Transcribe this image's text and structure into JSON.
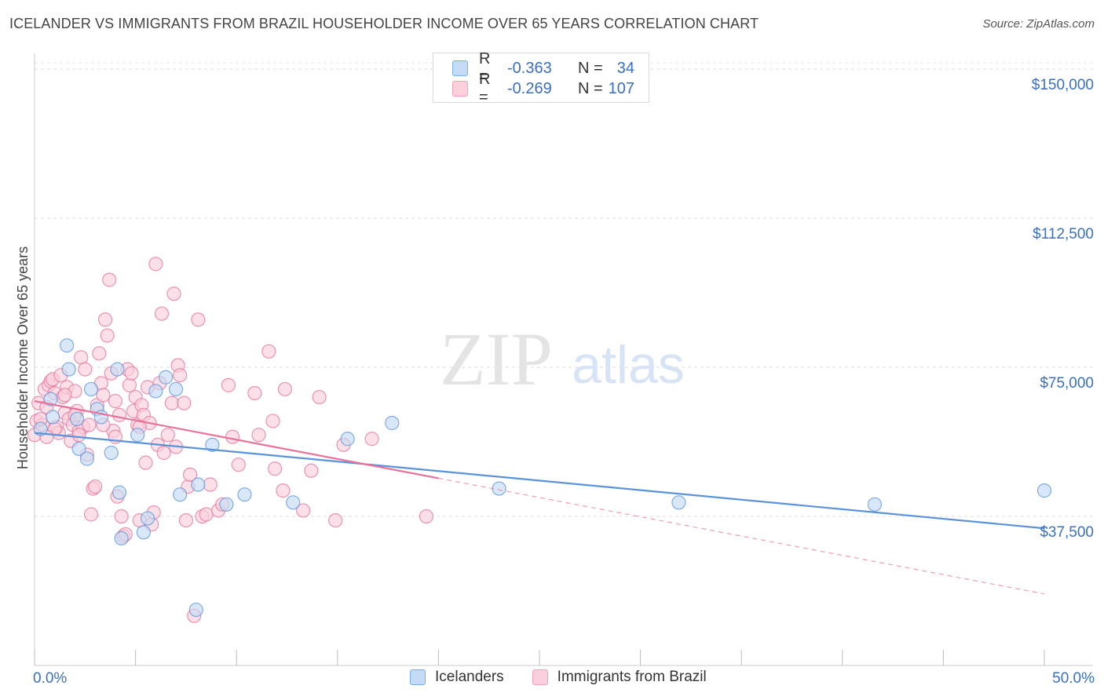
{
  "header": {
    "title": "ICELANDER VS IMMIGRANTS FROM BRAZIL HOUSEHOLDER INCOME OVER 65 YEARS CORRELATION CHART",
    "source": "Source: ZipAtlas.com"
  },
  "legend": {
    "rows": [
      {
        "r_label": "R =",
        "r_value": "-0.363",
        "n_label": "N =",
        "n_value": "34",
        "color": "#7aaee8",
        "fill": "#c5dbf5"
      },
      {
        "r_label": "R =",
        "r_value": "-0.269",
        "n_label": "N =",
        "n_value": "107",
        "color": "#f0a0b8",
        "fill": "#fad0dc"
      }
    ]
  },
  "bottom_legend": {
    "items": [
      {
        "label": "Icelanders",
        "color": "#7aaee8",
        "fill": "#c5dbf5"
      },
      {
        "label": "Immigrants from Brazil",
        "color": "#f0a0b8",
        "fill": "#fad0dc"
      }
    ]
  },
  "watermark": {
    "zip": "ZIP",
    "atlas": "atlas"
  },
  "chart_data": {
    "type": "scatter",
    "title": "ICELANDER VS IMMIGRANTS FROM BRAZIL HOUSEHOLDER INCOME OVER 65 YEARS CORRELATION CHART",
    "xlabel": "",
    "ylabel": "Householder Income Over 65 years",
    "xlim": [
      0,
      50
    ],
    "ylim": [
      0,
      152000
    ],
    "x_tick_labels": [
      "0.0%",
      "50.0%"
    ],
    "y_ticks": [
      37500,
      75000,
      112500,
      150000
    ],
    "y_tick_labels": [
      "$37,500",
      "$75,000",
      "$112,500",
      "$150,000"
    ],
    "grid": true,
    "series": [
      {
        "name": "Icelanders",
        "color": "#5b93d9",
        "fill": "#c5dbf5",
        "trend": {
          "x0": 0,
          "y0": 58500,
          "x1": 50,
          "y1": 34500,
          "dashed_from": null
        },
        "points": [
          [
            0.3,
            59500
          ],
          [
            0.8,
            67000
          ],
          [
            0.9,
            62500
          ],
          [
            1.6,
            80500
          ],
          [
            1.7,
            74500
          ],
          [
            2.1,
            62000
          ],
          [
            2.2,
            54500
          ],
          [
            2.6,
            52000
          ],
          [
            2.8,
            69500
          ],
          [
            3.1,
            64500
          ],
          [
            3.3,
            62500
          ],
          [
            3.8,
            53500
          ],
          [
            4.1,
            74500
          ],
          [
            4.2,
            43500
          ],
          [
            5.1,
            58000
          ],
          [
            5.4,
            33500
          ],
          [
            5.6,
            37000
          ],
          [
            6.0,
            69000
          ],
          [
            6.5,
            72500
          ],
          [
            7.2,
            43000
          ],
          [
            7.0,
            69500
          ],
          [
            8.1,
            45500
          ],
          [
            8.0,
            14000
          ],
          [
            8.8,
            55500
          ],
          [
            9.5,
            40500
          ],
          [
            10.4,
            43000
          ],
          [
            12.8,
            41000
          ],
          [
            15.5,
            57000
          ],
          [
            17.7,
            61000
          ],
          [
            23.0,
            44500
          ],
          [
            31.9,
            41000
          ],
          [
            41.6,
            40500
          ],
          [
            50.0,
            44000
          ],
          [
            4.3,
            32000
          ]
        ]
      },
      {
        "name": "Immigrants from Brazil",
        "color": "#e8729a",
        "fill": "#fad0dc",
        "trend": {
          "x0": 0,
          "y0": 66500,
          "x1": 50,
          "y1": 18000,
          "dashed_from": 20.0
        },
        "points": [
          [
            0.0,
            58000
          ],
          [
            0.1,
            61500
          ],
          [
            0.2,
            66000
          ],
          [
            0.4,
            60500
          ],
          [
            0.5,
            69500
          ],
          [
            0.6,
            65000
          ],
          [
            0.7,
            70500
          ],
          [
            0.8,
            71500
          ],
          [
            0.9,
            72000
          ],
          [
            1.0,
            68500
          ],
          [
            1.1,
            60000
          ],
          [
            1.2,
            58500
          ],
          [
            1.3,
            73000
          ],
          [
            1.4,
            67500
          ],
          [
            1.5,
            63500
          ],
          [
            1.6,
            70000
          ],
          [
            1.7,
            62000
          ],
          [
            1.8,
            56500
          ],
          [
            1.9,
            60500
          ],
          [
            2.0,
            69000
          ],
          [
            2.1,
            64000
          ],
          [
            2.2,
            59000
          ],
          [
            2.3,
            77500
          ],
          [
            2.4,
            60000
          ],
          [
            2.5,
            74500
          ],
          [
            2.6,
            53000
          ],
          [
            2.7,
            60500
          ],
          [
            2.8,
            38000
          ],
          [
            2.9,
            44500
          ],
          [
            3.0,
            45000
          ],
          [
            3.1,
            65500
          ],
          [
            3.2,
            78500
          ],
          [
            3.3,
            71000
          ],
          [
            3.4,
            68000
          ],
          [
            3.5,
            87000
          ],
          [
            3.6,
            83000
          ],
          [
            3.7,
            97000
          ],
          [
            3.8,
            73500
          ],
          [
            3.9,
            59000
          ],
          [
            4.0,
            57500
          ],
          [
            4.1,
            42500
          ],
          [
            4.2,
            63000
          ],
          [
            4.3,
            37500
          ],
          [
            4.4,
            32500
          ],
          [
            4.5,
            33000
          ],
          [
            4.6,
            74500
          ],
          [
            4.7,
            70500
          ],
          [
            4.8,
            73500
          ],
          [
            4.9,
            64000
          ],
          [
            5.0,
            67500
          ],
          [
            5.1,
            60500
          ],
          [
            5.2,
            36500
          ],
          [
            5.3,
            65500
          ],
          [
            5.4,
            63000
          ],
          [
            5.5,
            51000
          ],
          [
            5.6,
            70000
          ],
          [
            5.7,
            61000
          ],
          [
            5.8,
            35500
          ],
          [
            5.9,
            38500
          ],
          [
            6.0,
            101000
          ],
          [
            6.1,
            55500
          ],
          [
            6.2,
            71000
          ],
          [
            6.3,
            88500
          ],
          [
            6.4,
            53500
          ],
          [
            6.6,
            58000
          ],
          [
            6.8,
            66000
          ],
          [
            6.9,
            93500
          ],
          [
            7.1,
            75500
          ],
          [
            7.2,
            73000
          ],
          [
            7.4,
            66000
          ],
          [
            7.5,
            36500
          ],
          [
            7.6,
            45000
          ],
          [
            7.7,
            48000
          ],
          [
            7.9,
            12500
          ],
          [
            8.1,
            87000
          ],
          [
            8.3,
            37500
          ],
          [
            8.5,
            38000
          ],
          [
            8.7,
            45500
          ],
          [
            9.1,
            39000
          ],
          [
            9.3,
            40500
          ],
          [
            9.6,
            70500
          ],
          [
            9.8,
            57500
          ],
          [
            10.1,
            50500
          ],
          [
            10.9,
            68500
          ],
          [
            11.1,
            58000
          ],
          [
            11.6,
            79000
          ],
          [
            11.8,
            61500
          ],
          [
            11.9,
            49500
          ],
          [
            12.3,
            44000
          ],
          [
            12.4,
            69500
          ],
          [
            13.3,
            39000
          ],
          [
            13.7,
            49000
          ],
          [
            14.1,
            67500
          ],
          [
            14.9,
            36500
          ],
          [
            15.3,
            55500
          ],
          [
            16.7,
            57000
          ],
          [
            19.4,
            37500
          ],
          [
            0.3,
            62000
          ],
          [
            1.0,
            59500
          ],
          [
            2.0,
            63000
          ],
          [
            1.5,
            68000
          ],
          [
            0.6,
            57500
          ],
          [
            3.4,
            60500
          ],
          [
            5.2,
            60000
          ],
          [
            7.0,
            55000
          ],
          [
            2.2,
            58000
          ],
          [
            4.0,
            66500
          ]
        ]
      }
    ]
  }
}
